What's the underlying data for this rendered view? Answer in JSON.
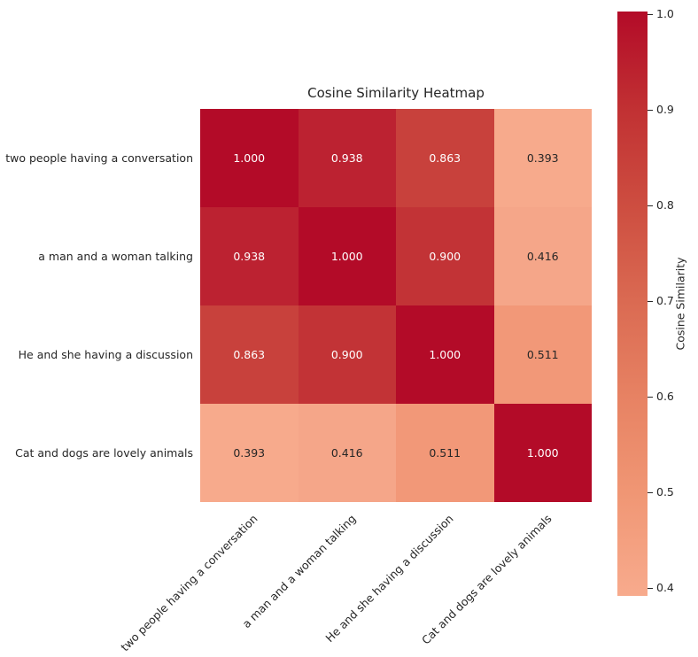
{
  "figure": {
    "background": "#ffffff"
  },
  "chart_data": {
    "type": "heatmap",
    "title": "Cosine Similarity Heatmap",
    "labels": [
      "two people having a conversation",
      "a man and a woman talking",
      "He and she having a discussion",
      "Cat and dogs are lovely animals"
    ],
    "matrix": [
      [
        1.0,
        0.938,
        0.863,
        0.393
      ],
      [
        0.938,
        1.0,
        0.9,
        0.416
      ],
      [
        0.863,
        0.9,
        1.0,
        0.511
      ],
      [
        0.393,
        0.416,
        0.511,
        1.0
      ]
    ],
    "cell_display": [
      [
        "1.000",
        "0.938",
        "0.863",
        "0.393"
      ],
      [
        "0.938",
        "1.000",
        "0.900",
        "0.416"
      ],
      [
        "0.863",
        "0.900",
        "1.000",
        "0.511"
      ],
      [
        "0.393",
        "0.416",
        "0.511",
        "1.000"
      ]
    ],
    "cell_colors": [
      [
        "#b30b28",
        "#bc2231",
        "#c8413c",
        "#f7aa8c"
      ],
      [
        "#bc2231",
        "#b30b28",
        "#c23336",
        "#f5a689"
      ],
      [
        "#c8413c",
        "#c23336",
        "#b30b28",
        "#f29878"
      ],
      [
        "#f7aa8c",
        "#f5a689",
        "#f29878",
        "#b30b28"
      ]
    ],
    "cell_text_colors": [
      [
        "#ffffff",
        "#ffffff",
        "#ffffff",
        "#262626"
      ],
      [
        "#ffffff",
        "#ffffff",
        "#ffffff",
        "#262626"
      ],
      [
        "#ffffff",
        "#ffffff",
        "#ffffff",
        "#262626"
      ],
      [
        "#262626",
        "#262626",
        "#262626",
        "#ffffff"
      ]
    ],
    "colorbar": {
      "label": "Cosine Similarity",
      "tick_labels": [
        "1.0",
        "0.9",
        "0.8",
        "0.7",
        "0.6",
        "0.5",
        "0.4"
      ],
      "vmin": 0.393,
      "vmax": 1.0,
      "gradient_top_to_bottom": [
        "#b30b28",
        "#c13133",
        "#cd4d40",
        "#da6a52",
        "#e78263",
        "#f09674",
        "#f7ab8d"
      ]
    },
    "colors": {
      "annotation_light": "#ffffff",
      "annotation_dark": "#262626",
      "tick_label_color": "#262626",
      "title_color": "#262626"
    },
    "layout_hints": {
      "grid": "off",
      "legend": "colorbar-right",
      "x_tick_rotation_deg": 45
    }
  }
}
